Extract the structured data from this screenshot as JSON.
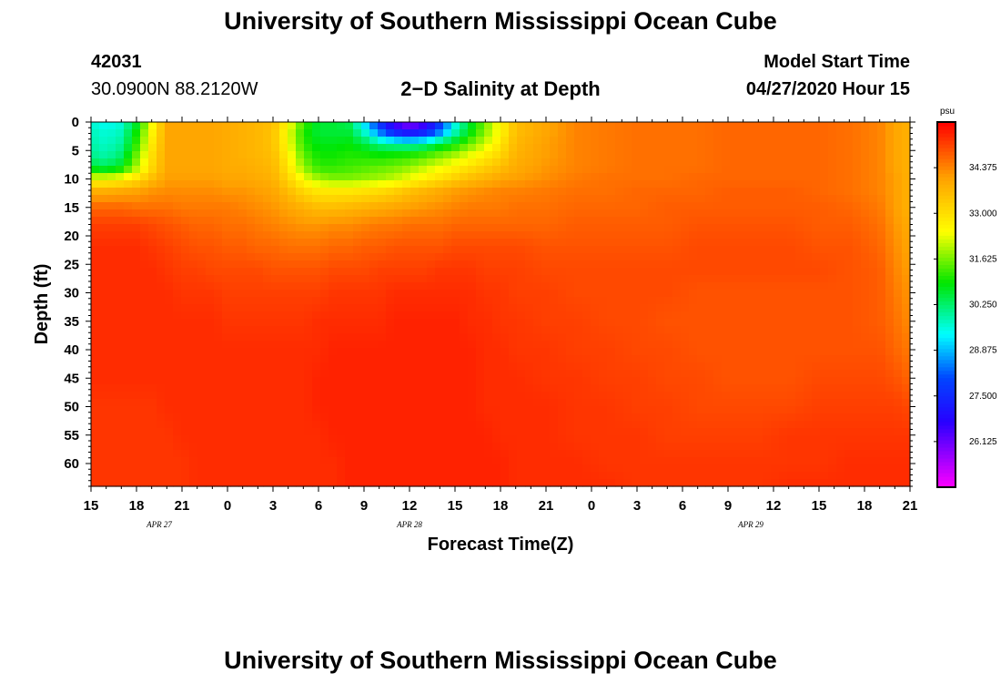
{
  "header": {
    "title_top": "University of Southern Mississippi Ocean Cube",
    "station_id": "42031",
    "station_coords": "30.0900N 88.2120W",
    "plot_title": "2−D Salinity at Depth",
    "model_start_label": "Model Start Time",
    "model_start_value": "04/27/2020 Hour 15",
    "title_bottom": "University of Southern Mississippi Ocean Cube"
  },
  "chart_data": {
    "type": "heatmap",
    "title": "2−D Salinity at Depth",
    "xlabel": "Forecast Time(Z)",
    "ylabel": "Depth (ft)",
    "x_tick_labels": [
      "15",
      "18",
      "21",
      "0",
      "3",
      "6",
      "9",
      "12",
      "15",
      "18",
      "21",
      "0",
      "3",
      "6",
      "9",
      "12",
      "15",
      "18",
      "21"
    ],
    "x_range_hours": [
      0,
      54
    ],
    "date_labels": [
      {
        "text": "APR 27",
        "hour": 4.5
      },
      {
        "text": "APR 28",
        "hour": 21
      },
      {
        "text": "APR 29",
        "hour": 43.5
      }
    ],
    "y_ticks": [
      0,
      5,
      10,
      15,
      20,
      25,
      30,
      35,
      40,
      45,
      50,
      55,
      60
    ],
    "ylim": [
      0,
      64
    ],
    "colorbar": {
      "unit": "psu",
      "min": 24.75,
      "max": 35.75,
      "tick_labels": [
        "34.375",
        "33.000",
        "31.625",
        "30.250",
        "28.875",
        "27.500",
        "26.125"
      ],
      "tick_values": [
        34.375,
        33.0,
        31.625,
        30.25,
        28.875,
        27.5,
        26.125
      ]
    },
    "salinity_grid": {
      "forecast_hours": [
        0,
        1,
        2,
        3,
        4,
        5,
        6,
        7,
        8,
        9,
        10,
        11,
        12,
        13,
        14,
        15,
        16,
        17,
        18,
        19,
        20,
        21,
        22,
        23,
        24,
        25,
        26,
        27,
        28,
        30,
        32,
        34,
        36,
        38,
        40,
        42,
        44,
        46,
        48,
        50,
        52,
        53,
        54
      ],
      "depths_ft": [
        0,
        2,
        4,
        6,
        8,
        10,
        12,
        15,
        18,
        22,
        26,
        30,
        35,
        40,
        45,
        50,
        55,
        60,
        64
      ],
      "values": [
        [
          29.6,
          29.4,
          29.6,
          30.6,
          32.4,
          34.0,
          34.0,
          34.0,
          34.0,
          33.9,
          33.8,
          33.7,
          33.6,
          32.6,
          31.3,
          30.6,
          30.6,
          30.4,
          29.1,
          27.5,
          26.2,
          25.6,
          26.2,
          27.6,
          29.4,
          30.6,
          31.6,
          32.6,
          33.6,
          34.0,
          34.4,
          34.5,
          34.6,
          34.6,
          34.6,
          34.7,
          34.7,
          34.7,
          34.7,
          34.6,
          34.4,
          34.0,
          33.8
        ],
        [
          29.8,
          29.6,
          29.8,
          31.0,
          32.6,
          34.0,
          34.0,
          34.0,
          34.0,
          33.9,
          33.8,
          33.7,
          33.5,
          32.4,
          31.1,
          30.6,
          30.6,
          30.6,
          29.8,
          28.6,
          27.6,
          27.2,
          27.6,
          28.6,
          29.9,
          30.9,
          31.8,
          32.6,
          33.6,
          34.0,
          34.4,
          34.5,
          34.6,
          34.6,
          34.6,
          34.7,
          34.7,
          34.7,
          34.7,
          34.6,
          34.4,
          34.0,
          33.8
        ],
        [
          29.9,
          29.7,
          30.0,
          31.2,
          32.8,
          34.0,
          34.0,
          34.0,
          34.0,
          33.9,
          33.8,
          33.7,
          33.5,
          32.5,
          31.2,
          30.8,
          30.8,
          30.9,
          30.6,
          30.2,
          30.0,
          29.9,
          30.1,
          30.6,
          31.0,
          31.6,
          32.2,
          32.9,
          33.7,
          34.1,
          34.4,
          34.5,
          34.6,
          34.6,
          34.6,
          34.7,
          34.7,
          34.7,
          34.7,
          34.6,
          34.4,
          34.0,
          33.8
        ],
        [
          30.1,
          29.9,
          30.3,
          31.6,
          33.0,
          34.0,
          34.0,
          34.0,
          34.0,
          33.9,
          33.8,
          33.7,
          33.6,
          32.7,
          31.5,
          31.0,
          31.0,
          31.1,
          31.1,
          31.0,
          31.1,
          31.2,
          31.4,
          31.7,
          32.0,
          32.4,
          32.8,
          33.2,
          33.8,
          34.1,
          34.4,
          34.5,
          34.6,
          34.6,
          34.6,
          34.7,
          34.7,
          34.7,
          34.7,
          34.6,
          34.4,
          34.0,
          33.8
        ],
        [
          30.6,
          30.4,
          30.8,
          31.9,
          33.1,
          34.0,
          34.0,
          34.0,
          34.0,
          33.9,
          33.9,
          33.8,
          33.7,
          32.9,
          31.8,
          31.2,
          31.2,
          31.3,
          31.4,
          31.5,
          31.6,
          31.8,
          32.1,
          32.4,
          32.7,
          33.0,
          33.3,
          33.6,
          33.9,
          34.2,
          34.4,
          34.5,
          34.6,
          34.6,
          34.6,
          34.7,
          34.7,
          34.7,
          34.7,
          34.6,
          34.4,
          34.0,
          33.8
        ],
        [
          32.4,
          32.4,
          32.6,
          33.0,
          33.6,
          34.1,
          34.1,
          34.1,
          34.1,
          34.0,
          34.0,
          33.9,
          33.8,
          33.2,
          32.4,
          31.9,
          31.7,
          31.7,
          31.8,
          31.9,
          32.1,
          32.4,
          32.7,
          33.0,
          33.3,
          33.6,
          33.8,
          34.0,
          34.1,
          34.3,
          34.5,
          34.6,
          34.6,
          34.6,
          34.7,
          34.7,
          34.7,
          34.7,
          34.7,
          34.6,
          34.4,
          34.1,
          33.8
        ],
        [
          33.8,
          33.8,
          33.9,
          34.0,
          34.2,
          34.3,
          34.3,
          34.3,
          34.3,
          34.2,
          34.2,
          34.1,
          34.0,
          33.6,
          33.1,
          32.8,
          32.8,
          32.8,
          32.9,
          33.0,
          33.2,
          33.5,
          33.7,
          33.9,
          34.1,
          34.2,
          34.3,
          34.4,
          34.4,
          34.5,
          34.6,
          34.6,
          34.7,
          34.7,
          34.7,
          34.8,
          34.8,
          34.8,
          34.7,
          34.6,
          34.4,
          34.1,
          33.8
        ],
        [
          34.7,
          34.7,
          34.7,
          34.6,
          34.6,
          34.6,
          34.5,
          34.5,
          34.5,
          34.5,
          34.4,
          34.3,
          34.2,
          34.0,
          33.8,
          33.6,
          33.6,
          33.7,
          33.8,
          33.9,
          34.0,
          34.1,
          34.2,
          34.3,
          34.4,
          34.5,
          34.5,
          34.5,
          34.6,
          34.6,
          34.7,
          34.7,
          34.7,
          34.8,
          34.8,
          34.8,
          34.8,
          34.8,
          34.8,
          34.7,
          34.5,
          34.1,
          33.8
        ],
        [
          35.1,
          35.1,
          35.1,
          35.1,
          35.0,
          34.9,
          34.8,
          34.7,
          34.7,
          34.6,
          34.6,
          34.5,
          34.4,
          34.3,
          34.2,
          34.2,
          34.3,
          34.3,
          34.4,
          34.5,
          34.5,
          34.6,
          34.6,
          34.6,
          34.7,
          34.7,
          34.7,
          34.7,
          34.7,
          34.7,
          34.8,
          34.8,
          34.8,
          34.8,
          34.9,
          34.9,
          34.9,
          34.9,
          34.8,
          34.8,
          34.6,
          34.2,
          33.9
        ],
        [
          35.3,
          35.3,
          35.3,
          35.3,
          35.2,
          35.1,
          35.0,
          34.9,
          34.9,
          34.8,
          34.8,
          34.7,
          34.7,
          34.6,
          34.6,
          34.6,
          34.7,
          34.7,
          34.8,
          34.8,
          34.9,
          34.9,
          34.9,
          34.9,
          35.0,
          35.0,
          35.0,
          35.0,
          35.0,
          34.9,
          34.9,
          34.9,
          34.9,
          34.9,
          35.0,
          35.0,
          35.0,
          35.0,
          34.9,
          34.9,
          34.7,
          34.3,
          34.0
        ],
        [
          35.3,
          35.3,
          35.3,
          35.3,
          35.3,
          35.2,
          35.1,
          35.1,
          35.0,
          35.0,
          35.0,
          35.0,
          34.9,
          34.9,
          34.9,
          34.9,
          35.0,
          35.0,
          35.0,
          35.1,
          35.1,
          35.1,
          35.1,
          35.2,
          35.2,
          35.2,
          35.1,
          35.1,
          35.1,
          35.0,
          35.0,
          35.0,
          35.0,
          35.0,
          35.0,
          35.0,
          35.0,
          35.0,
          35.0,
          34.9,
          34.8,
          34.4,
          34.1
        ],
        [
          35.3,
          35.3,
          35.3,
          35.3,
          35.3,
          35.3,
          35.2,
          35.2,
          35.2,
          35.1,
          35.1,
          35.1,
          35.1,
          35.1,
          35.1,
          35.1,
          35.2,
          35.2,
          35.2,
          35.2,
          35.3,
          35.3,
          35.3,
          35.3,
          35.3,
          35.3,
          35.2,
          35.2,
          35.1,
          35.1,
          35.0,
          35.0,
          35.0,
          35.0,
          34.9,
          34.9,
          34.9,
          34.9,
          34.9,
          34.9,
          34.8,
          34.5,
          34.2
        ],
        [
          35.3,
          35.3,
          35.3,
          35.3,
          35.3,
          35.3,
          35.3,
          35.3,
          35.3,
          35.2,
          35.2,
          35.2,
          35.2,
          35.2,
          35.2,
          35.3,
          35.3,
          35.3,
          35.3,
          35.3,
          35.4,
          35.4,
          35.4,
          35.4,
          35.4,
          35.3,
          35.3,
          35.2,
          35.2,
          35.1,
          35.1,
          35.0,
          35.0,
          34.9,
          34.9,
          34.9,
          34.9,
          34.9,
          34.9,
          34.9,
          34.8,
          34.6,
          34.3
        ],
        [
          35.3,
          35.3,
          35.3,
          35.3,
          35.3,
          35.3,
          35.3,
          35.3,
          35.3,
          35.3,
          35.3,
          35.3,
          35.3,
          35.3,
          35.3,
          35.3,
          35.4,
          35.4,
          35.4,
          35.4,
          35.4,
          35.4,
          35.4,
          35.4,
          35.4,
          35.4,
          35.3,
          35.3,
          35.2,
          35.2,
          35.1,
          35.1,
          35.0,
          35.0,
          34.9,
          34.9,
          34.9,
          34.9,
          34.9,
          34.9,
          34.9,
          34.7,
          34.5
        ],
        [
          35.3,
          35.3,
          35.3,
          35.3,
          35.3,
          35.3,
          35.3,
          35.3,
          35.3,
          35.3,
          35.3,
          35.3,
          35.3,
          35.3,
          35.3,
          35.4,
          35.4,
          35.4,
          35.4,
          35.4,
          35.4,
          35.4,
          35.4,
          35.4,
          35.4,
          35.4,
          35.3,
          35.3,
          35.3,
          35.2,
          35.2,
          35.1,
          35.1,
          35.0,
          35.0,
          34.9,
          34.9,
          34.9,
          35.0,
          35.0,
          35.0,
          34.9,
          34.7
        ],
        [
          35.2,
          35.2,
          35.2,
          35.2,
          35.2,
          35.3,
          35.3,
          35.3,
          35.3,
          35.3,
          35.3,
          35.3,
          35.3,
          35.3,
          35.3,
          35.4,
          35.4,
          35.4,
          35.4,
          35.4,
          35.4,
          35.4,
          35.4,
          35.4,
          35.4,
          35.4,
          35.3,
          35.3,
          35.3,
          35.3,
          35.2,
          35.2,
          35.1,
          35.1,
          35.0,
          35.0,
          35.0,
          35.0,
          35.1,
          35.1,
          35.1,
          35.1,
          35.0
        ],
        [
          35.2,
          35.2,
          35.2,
          35.2,
          35.2,
          35.2,
          35.3,
          35.3,
          35.3,
          35.3,
          35.3,
          35.3,
          35.3,
          35.3,
          35.3,
          35.3,
          35.4,
          35.4,
          35.4,
          35.4,
          35.4,
          35.4,
          35.4,
          35.4,
          35.4,
          35.4,
          35.4,
          35.3,
          35.3,
          35.3,
          35.2,
          35.2,
          35.2,
          35.1,
          35.1,
          35.1,
          35.1,
          35.2,
          35.2,
          35.2,
          35.2,
          35.2,
          35.2
        ],
        [
          35.2,
          35.2,
          35.2,
          35.2,
          35.2,
          35.2,
          35.2,
          35.3,
          35.3,
          35.3,
          35.3,
          35.3,
          35.3,
          35.3,
          35.3,
          35.3,
          35.3,
          35.4,
          35.4,
          35.4,
          35.4,
          35.4,
          35.4,
          35.4,
          35.4,
          35.4,
          35.4,
          35.4,
          35.3,
          35.3,
          35.3,
          35.2,
          35.2,
          35.2,
          35.2,
          35.2,
          35.2,
          35.2,
          35.2,
          35.3,
          35.3,
          35.3,
          35.3
        ],
        [
          35.2,
          35.2,
          35.2,
          35.2,
          35.2,
          35.2,
          35.2,
          35.3,
          35.3,
          35.3,
          35.3,
          35.3,
          35.3,
          35.3,
          35.3,
          35.3,
          35.3,
          35.4,
          35.4,
          35.4,
          35.4,
          35.4,
          35.4,
          35.4,
          35.4,
          35.4,
          35.4,
          35.4,
          35.3,
          35.3,
          35.3,
          35.3,
          35.2,
          35.2,
          35.2,
          35.2,
          35.2,
          35.3,
          35.3,
          35.3,
          35.3,
          35.3,
          35.3
        ]
      ]
    }
  }
}
